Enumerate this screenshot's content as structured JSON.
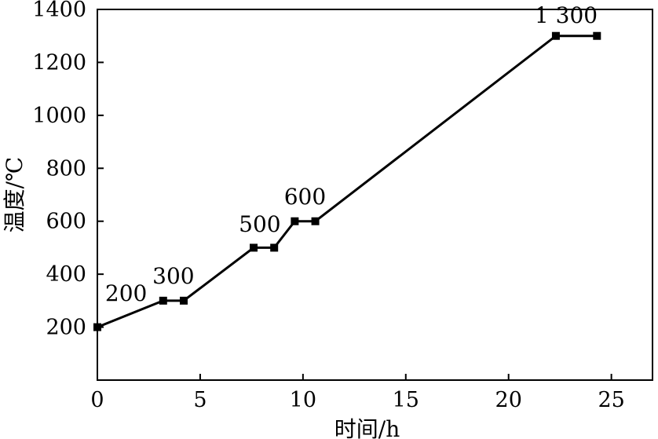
{
  "chart_data": {
    "type": "line",
    "xlabel": "时间/h",
    "ylabel": "温度/℃",
    "xlim": [
      0,
      27
    ],
    "ylim": [
      0,
      1400
    ],
    "xticks": [
      0,
      5,
      10,
      15,
      20,
      25
    ],
    "yticks": [
      0,
      200,
      400,
      600,
      800,
      1000,
      1200,
      1400
    ],
    "x_tick_labels": [
      "0",
      "5",
      "10",
      "15",
      "20",
      "25"
    ],
    "y_tick_labels": [
      "200",
      "400",
      "600",
      "800",
      "1000",
      "1200",
      "1400"
    ],
    "grid": false,
    "series": [
      {
        "points": [
          {
            "x": 0,
            "y": 200
          },
          {
            "x": 3.2,
            "y": 300
          },
          {
            "x": 4.2,
            "y": 300
          },
          {
            "x": 7.6,
            "y": 500
          },
          {
            "x": 8.6,
            "y": 500
          },
          {
            "x": 9.6,
            "y": 600
          },
          {
            "x": 10.6,
            "y": 600
          },
          {
            "x": 22.3,
            "y": 1300
          },
          {
            "x": 24.3,
            "y": 1300
          }
        ],
        "marker_points": [
          {
            "x": 0,
            "y": 200
          },
          {
            "x": 3.2,
            "y": 300
          },
          {
            "x": 4.2,
            "y": 300
          },
          {
            "x": 7.6,
            "y": 500
          },
          {
            "x": 8.6,
            "y": 500
          },
          {
            "x": 9.6,
            "y": 600
          },
          {
            "x": 10.6,
            "y": 600
          },
          {
            "x": 22.3,
            "y": 1300
          },
          {
            "x": 24.3,
            "y": 1300
          }
        ]
      }
    ],
    "annotations": [
      {
        "text": "200",
        "x": 1.4,
        "y": 300
      },
      {
        "text": "300",
        "x": 3.7,
        "y": 365
      },
      {
        "text": "500",
        "x": 7.9,
        "y": 560
      },
      {
        "text": "600",
        "x": 10.1,
        "y": 665
      },
      {
        "text": "1 300",
        "x": 22.8,
        "y": 1350
      }
    ],
    "colors": {
      "line": "#000000",
      "marker": "#000000",
      "axis": "#000000",
      "background": "#ffffff"
    }
  }
}
